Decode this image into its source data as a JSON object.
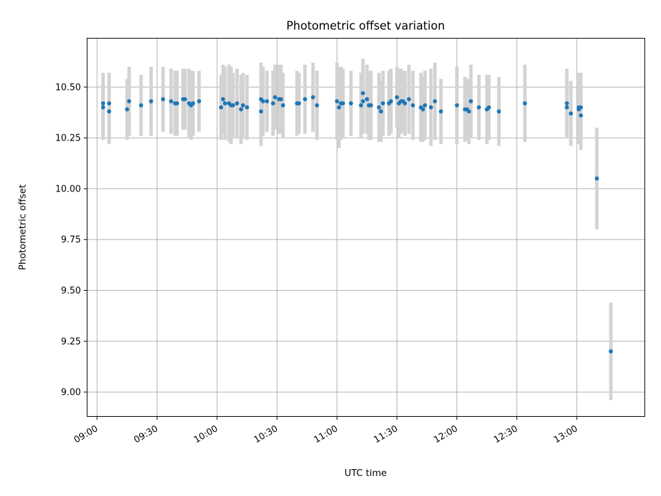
{
  "chart_data": {
    "type": "scatter",
    "title": "Photometric offset variation",
    "xlabel": "UTC time",
    "ylabel": "Photometric offset",
    "xlim": [
      "08:55",
      "13:34"
    ],
    "ylim": [
      8.88,
      10.74
    ],
    "x_ticks": [
      "09:00",
      "09:30",
      "10:00",
      "10:30",
      "11:00",
      "11:30",
      "12:00",
      "12:30",
      "13:00"
    ],
    "y_ticks": [
      "9.00",
      "9.25",
      "9.50",
      "9.75",
      "10.00",
      "10.25",
      "10.50"
    ],
    "grid": true,
    "marker_color": "#1f77b4",
    "errorbar_color": "#d3d3d3",
    "series": [
      {
        "x": [
          "09:03",
          "09:03",
          "09:06",
          "09:06",
          "09:15",
          "09:16",
          "09:22",
          "09:27",
          "09:33",
          "09:37",
          "09:39",
          "09:40",
          "09:43",
          "09:44",
          "09:46",
          "09:47",
          "09:48",
          "09:51",
          "10:02",
          "10:03",
          "10:04",
          "10:06",
          "10:07",
          "10:08",
          "10:10",
          "10:12",
          "10:13",
          "10:15",
          "10:22",
          "10:22",
          "10:23",
          "10:25",
          "10:28",
          "10:29",
          "10:31",
          "10:32",
          "10:33",
          "10:40",
          "10:41",
          "10:44",
          "10:48",
          "10:50",
          "11:00",
          "11:01",
          "11:02",
          "11:03",
          "11:07",
          "11:12",
          "11:13",
          "11:13",
          "11:15",
          "11:16",
          "11:17",
          "11:21",
          "11:22",
          "11:23",
          "11:26",
          "11:27",
          "11:30",
          "11:31",
          "11:32",
          "11:33",
          "11:34",
          "11:36",
          "11:38",
          "11:42",
          "11:43",
          "11:44",
          "11:47",
          "11:49",
          "11:52",
          "12:00",
          "12:04",
          "12:05",
          "12:06",
          "12:07",
          "12:11",
          "12:15",
          "12:16",
          "12:21",
          "12:34",
          "12:55",
          "12:55",
          "12:57",
          "13:01",
          "13:01",
          "13:02",
          "13:02",
          "13:10",
          "13:17"
        ],
        "y": [
          10.42,
          10.4,
          10.38,
          10.42,
          10.39,
          10.43,
          10.41,
          10.43,
          10.44,
          10.43,
          10.42,
          10.42,
          10.44,
          10.44,
          10.42,
          10.41,
          10.42,
          10.43,
          10.4,
          10.44,
          10.42,
          10.42,
          10.41,
          10.41,
          10.42,
          10.39,
          10.41,
          10.4,
          10.38,
          10.44,
          10.43,
          10.43,
          10.42,
          10.45,
          10.44,
          10.44,
          10.41,
          10.42,
          10.42,
          10.44,
          10.45,
          10.41,
          10.43,
          10.4,
          10.42,
          10.42,
          10.42,
          10.41,
          10.43,
          10.47,
          10.44,
          10.41,
          10.41,
          10.4,
          10.38,
          10.42,
          10.42,
          10.43,
          10.45,
          10.42,
          10.43,
          10.43,
          10.42,
          10.44,
          10.41,
          10.4,
          10.39,
          10.41,
          10.4,
          10.43,
          10.38,
          10.41,
          10.39,
          10.39,
          10.38,
          10.43,
          10.4,
          10.39,
          10.4,
          10.38,
          10.42,
          10.4,
          10.42,
          10.37,
          10.39,
          10.4,
          10.4,
          10.36,
          10.05,
          9.2
        ],
        "err": [
          0.15,
          0.16,
          0.16,
          0.15,
          0.15,
          0.17,
          0.15,
          0.17,
          0.16,
          0.16,
          0.16,
          0.16,
          0.15,
          0.15,
          0.17,
          0.17,
          0.16,
          0.15,
          0.16,
          0.17,
          0.18,
          0.19,
          0.19,
          0.16,
          0.17,
          0.17,
          0.16,
          0.16,
          0.17,
          0.18,
          0.17,
          0.15,
          0.16,
          0.16,
          0.17,
          0.17,
          0.16,
          0.16,
          0.15,
          0.17,
          0.17,
          0.17,
          0.19,
          0.2,
          0.18,
          0.17,
          0.16,
          0.16,
          0.16,
          0.17,
          0.17,
          0.17,
          0.17,
          0.17,
          0.15,
          0.16,
          0.16,
          0.16,
          0.15,
          0.17,
          0.16,
          0.15,
          0.16,
          0.17,
          0.17,
          0.17,
          0.16,
          0.17,
          0.19,
          0.19,
          0.16,
          0.19,
          0.16,
          0.15,
          0.16,
          0.18,
          0.16,
          0.17,
          0.16,
          0.17,
          0.19,
          0.14,
          0.17,
          0.16,
          0.17,
          0.17,
          0.17,
          0.17,
          0.25,
          0.24
        ]
      }
    ]
  }
}
